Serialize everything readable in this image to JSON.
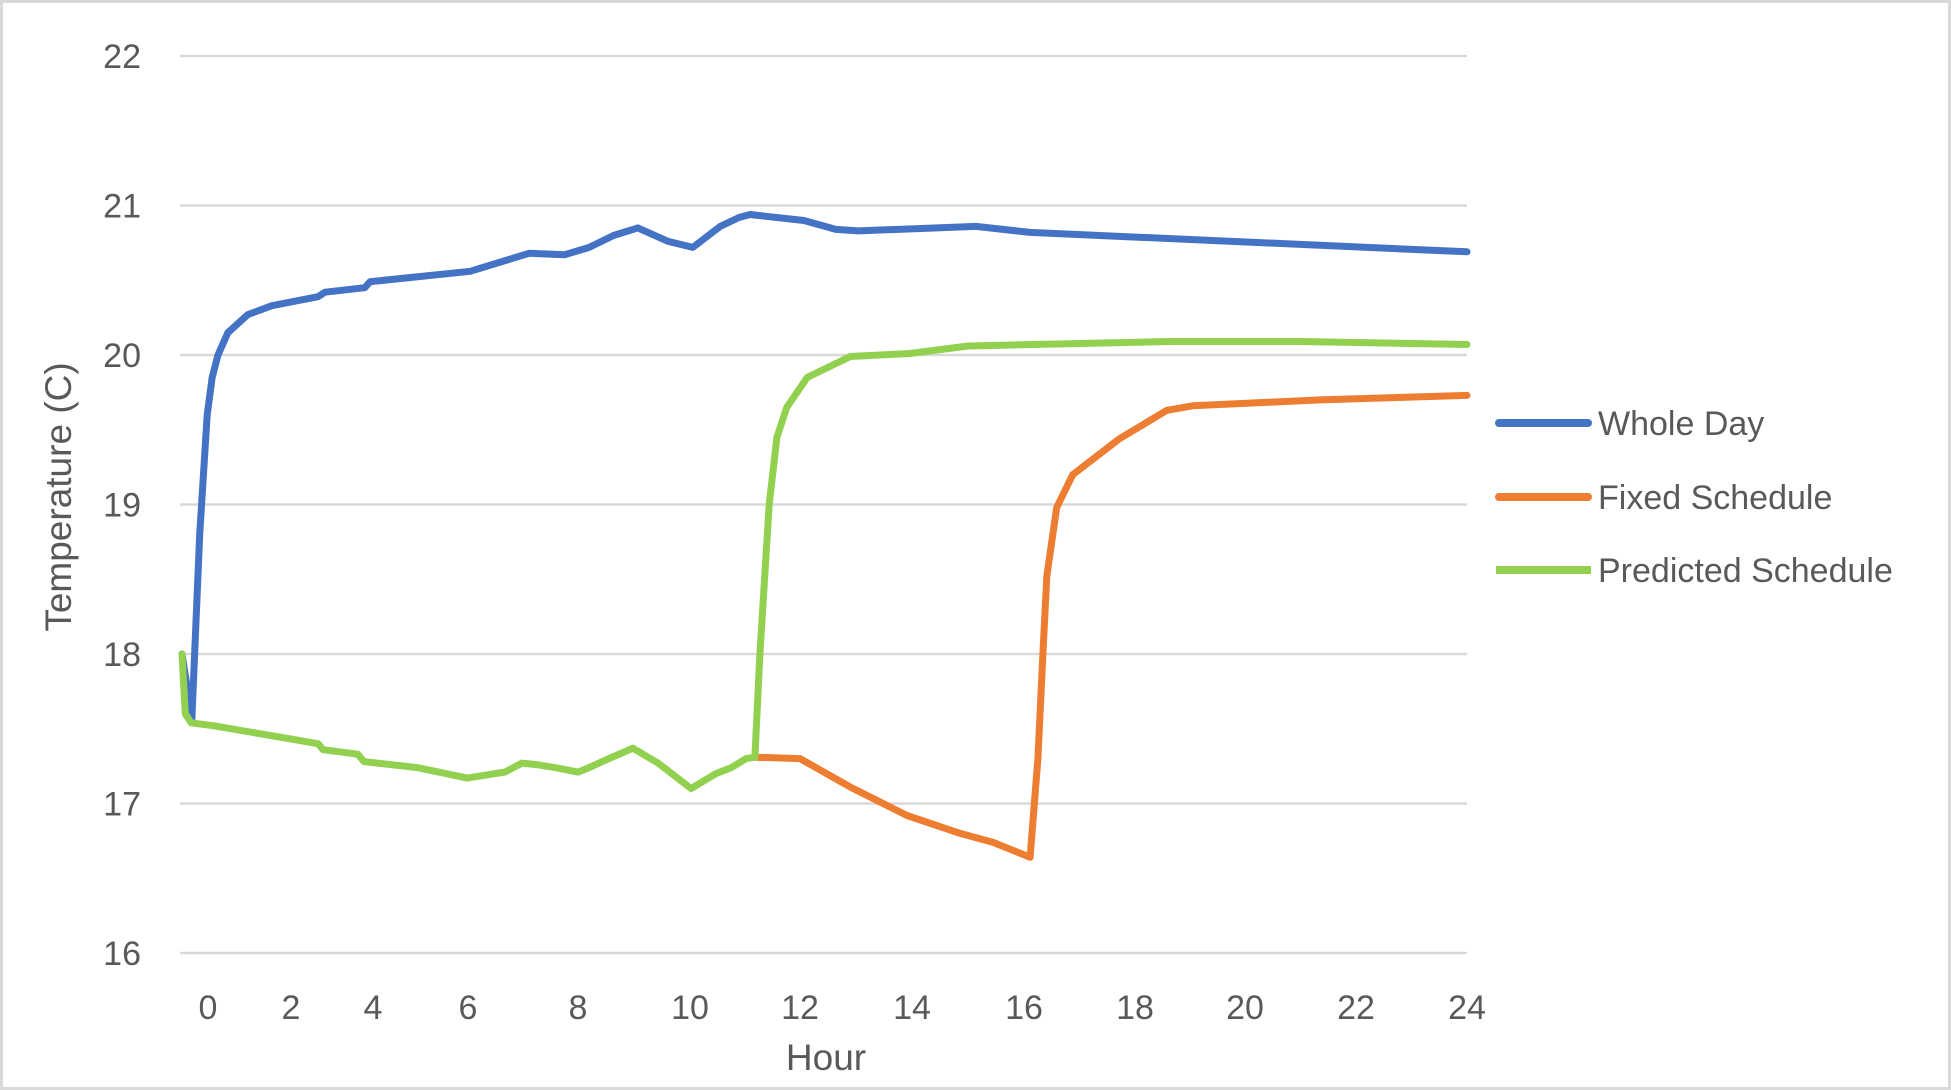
{
  "chart_data": {
    "type": "line",
    "title": "",
    "xlabel": "Hour",
    "ylabel": "Temperature (C)",
    "ylim": [
      16,
      22
    ],
    "yticks": [
      16,
      17,
      18,
      19,
      20,
      21,
      22
    ],
    "xticks": [
      0,
      2,
      4,
      6,
      8,
      10,
      12,
      14,
      16,
      18,
      20,
      22,
      24
    ],
    "grid": "horizontal",
    "legend_position": "right",
    "series": [
      {
        "name": "Whole Day",
        "color": "#4472C4",
        "points": [
          [
            -0.63,
            18.0
          ],
          [
            -0.39,
            17.57
          ],
          [
            -0.2,
            18.8
          ],
          [
            -0.02,
            19.6
          ],
          [
            0.1,
            19.85
          ],
          [
            0.24,
            20.0
          ],
          [
            0.48,
            20.15
          ],
          [
            0.96,
            20.27
          ],
          [
            1.54,
            20.33
          ],
          [
            2.66,
            20.39
          ],
          [
            2.83,
            20.42
          ],
          [
            3.8,
            20.45
          ],
          [
            3.93,
            20.49
          ],
          [
            6.04,
            20.56
          ],
          [
            7.11,
            20.68
          ],
          [
            7.75,
            20.67
          ],
          [
            8.2,
            20.72
          ],
          [
            8.64,
            20.8
          ],
          [
            9.07,
            20.85
          ],
          [
            9.61,
            20.76
          ],
          [
            10.05,
            20.72
          ],
          [
            10.55,
            20.86
          ],
          [
            10.89,
            20.92
          ],
          [
            11.09,
            20.94
          ],
          [
            12.07,
            20.9
          ],
          [
            12.64,
            20.84
          ],
          [
            13.04,
            20.83
          ],
          [
            15.14,
            20.86
          ],
          [
            16.11,
            20.82
          ],
          [
            24.0,
            20.69
          ]
        ]
      },
      {
        "name": "Fixed Schedule",
        "color": "#ED7D31",
        "points": [
          [
            11.18,
            17.31
          ],
          [
            12.0,
            17.3
          ],
          [
            12.9,
            17.11
          ],
          [
            13.91,
            16.92
          ],
          [
            14.86,
            16.8
          ],
          [
            15.45,
            16.74
          ],
          [
            16.11,
            16.64
          ],
          [
            16.25,
            17.3
          ],
          [
            16.34,
            18.0
          ],
          [
            16.41,
            18.52
          ],
          [
            16.59,
            18.98
          ],
          [
            16.88,
            19.2
          ],
          [
            17.72,
            19.44
          ],
          [
            18.58,
            19.63
          ],
          [
            19.05,
            19.66
          ],
          [
            21.35,
            19.7
          ],
          [
            24.0,
            19.73
          ]
        ]
      },
      {
        "name": "Predicted Schedule",
        "color": "#92D050",
        "points": [
          [
            -0.63,
            18.0
          ],
          [
            -0.55,
            17.6
          ],
          [
            -0.41,
            17.54
          ],
          [
            0.14,
            17.52
          ],
          [
            2.66,
            17.4
          ],
          [
            2.78,
            17.36
          ],
          [
            3.63,
            17.33
          ],
          [
            3.78,
            17.28
          ],
          [
            4.93,
            17.24
          ],
          [
            5.98,
            17.17
          ],
          [
            6.67,
            17.21
          ],
          [
            6.98,
            17.27
          ],
          [
            7.24,
            17.26
          ],
          [
            7.58,
            17.24
          ],
          [
            8.0,
            17.21
          ],
          [
            8.2,
            17.24
          ],
          [
            8.55,
            17.3
          ],
          [
            8.98,
            17.37
          ],
          [
            9.43,
            17.27
          ],
          [
            10.02,
            17.1
          ],
          [
            10.47,
            17.2
          ],
          [
            10.75,
            17.24
          ],
          [
            11.02,
            17.3
          ],
          [
            11.18,
            17.31
          ],
          [
            11.27,
            18.0
          ],
          [
            11.44,
            19.0
          ],
          [
            11.58,
            19.45
          ],
          [
            11.76,
            19.65
          ],
          [
            12.13,
            19.85
          ],
          [
            12.9,
            19.99
          ],
          [
            13.96,
            20.01
          ],
          [
            15.0,
            20.06
          ],
          [
            18.63,
            20.09
          ],
          [
            20.99,
            20.09
          ],
          [
            24.0,
            20.07
          ]
        ]
      }
    ]
  },
  "axes": {
    "x_title": "Hour",
    "y_title": "Temperature (C)"
  },
  "legend": {
    "items": [
      {
        "label": "Whole Day",
        "color": "#4472C4"
      },
      {
        "label": "Fixed Schedule",
        "color": "#ED7D31"
      },
      {
        "label": "Predicted Schedule",
        "color": "#92D050"
      }
    ]
  }
}
